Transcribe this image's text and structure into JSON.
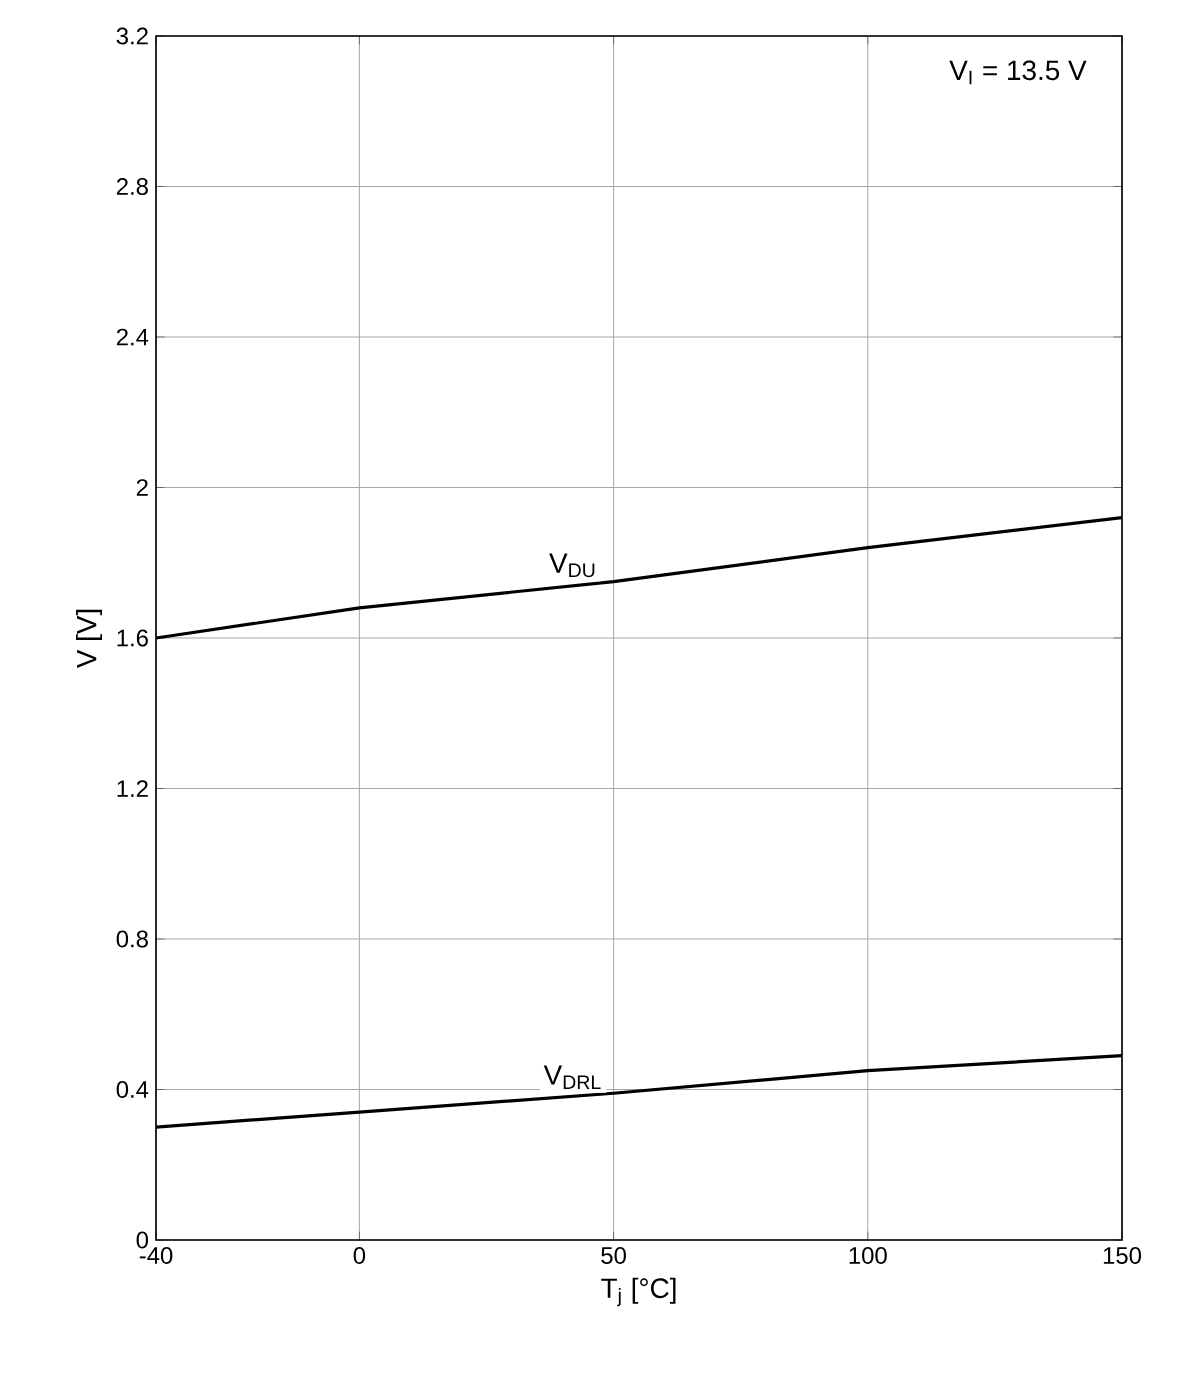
{
  "chart_data": {
    "type": "line",
    "xlabel": "T$_{j}$ [°C]",
    "ylabel": "V [V]",
    "x": [
      -40,
      0,
      50,
      100,
      150
    ],
    "series": [
      {
        "name": "V$_{DU}$",
        "color": "#000000",
        "values": [
          1.6,
          1.68,
          1.75,
          1.84,
          1.92
        ]
      },
      {
        "name": "V$_{DRL}$",
        "color": "#000000",
        "values": [
          0.3,
          0.34,
          0.39,
          0.45,
          0.49
        ]
      }
    ],
    "annotations": [
      "V$_{I}$ = 13.5 V"
    ],
    "xlim": [
      -40,
      150
    ],
    "xticks": [
      -40,
      0,
      50,
      100,
      150
    ],
    "ylim": [
      0,
      3.2
    ],
    "yticks": [
      0,
      0.4,
      0.8,
      1.2,
      1.6,
      2,
      2.4,
      2.8,
      3.2
    ],
    "grid": true,
    "legend": false,
    "marker": "none",
    "line_style": "solid"
  }
}
